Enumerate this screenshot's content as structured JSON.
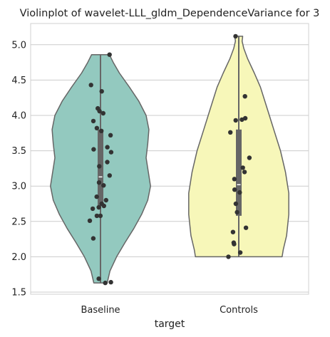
{
  "chart_data": {
    "type": "violin",
    "title": "Violinplot of wavelet-LLL_gldm_DependenceVariance for 3",
    "xlabel": "target",
    "ylabel": "",
    "categories": [
      "Baseline",
      "Controls"
    ],
    "ylim": [
      1.47,
      5.3
    ],
    "yticks": [
      "1.5",
      "2.0",
      "2.5",
      "3.0",
      "3.5",
      "4.0",
      "4.5",
      "5.0"
    ],
    "grid": "horizontal",
    "colors": {
      "Baseline": "#93c9bf",
      "Controls": "#f7f7b9",
      "outline": "#666666",
      "points": "#333333",
      "grid": "#cccccc"
    },
    "violins": [
      {
        "name": "Baseline",
        "min": 1.63,
        "max": 4.86,
        "q1": 2.72,
        "median": 3.13,
        "q3": 3.8,
        "profile": [
          [
            1.63,
            0.12
          ],
          [
            1.8,
            0.17
          ],
          [
            2.0,
            0.29
          ],
          [
            2.2,
            0.44
          ],
          [
            2.4,
            0.6
          ],
          [
            2.6,
            0.74
          ],
          [
            2.8,
            0.85
          ],
          [
            3.0,
            0.9
          ],
          [
            3.2,
            0.86
          ],
          [
            3.4,
            0.82
          ],
          [
            3.6,
            0.85
          ],
          [
            3.8,
            0.87
          ],
          [
            4.0,
            0.82
          ],
          [
            4.2,
            0.69
          ],
          [
            4.4,
            0.52
          ],
          [
            4.6,
            0.34
          ],
          [
            4.75,
            0.23
          ],
          [
            4.86,
            0.16
          ]
        ],
        "points": [
          4.86,
          4.43,
          4.34,
          4.1,
          4.06,
          4.03,
          3.92,
          3.82,
          3.78,
          3.72,
          3.55,
          3.52,
          3.48,
          3.34,
          3.28,
          3.15,
          3.05,
          3.01,
          2.85,
          2.8,
          2.75,
          2.72,
          2.7,
          2.68,
          2.58,
          2.58,
          2.51,
          2.26,
          1.69,
          1.64,
          1.63
        ]
      },
      {
        "name": "Controls",
        "min": 2.0,
        "max": 5.12,
        "q1": 2.58,
        "median": 3.02,
        "q3": 3.8,
        "profile": [
          [
            2.0,
            0.78
          ],
          [
            2.1,
            0.8
          ],
          [
            2.3,
            0.86
          ],
          [
            2.6,
            0.9
          ],
          [
            2.9,
            0.9
          ],
          [
            3.2,
            0.84
          ],
          [
            3.5,
            0.75
          ],
          [
            3.8,
            0.63
          ],
          [
            4.1,
            0.51
          ],
          [
            4.4,
            0.39
          ],
          [
            4.6,
            0.28
          ],
          [
            4.8,
            0.16
          ],
          [
            4.95,
            0.09
          ],
          [
            5.05,
            0.06
          ],
          [
            5.12,
            0.07
          ]
        ],
        "points": [
          5.12,
          4.27,
          3.96,
          3.94,
          3.93,
          3.76,
          3.4,
          3.26,
          3.2,
          3.1,
          2.95,
          2.91,
          2.75,
          2.63,
          2.35,
          2.41,
          2.2,
          2.18,
          2.06,
          2.0
        ]
      }
    ]
  }
}
